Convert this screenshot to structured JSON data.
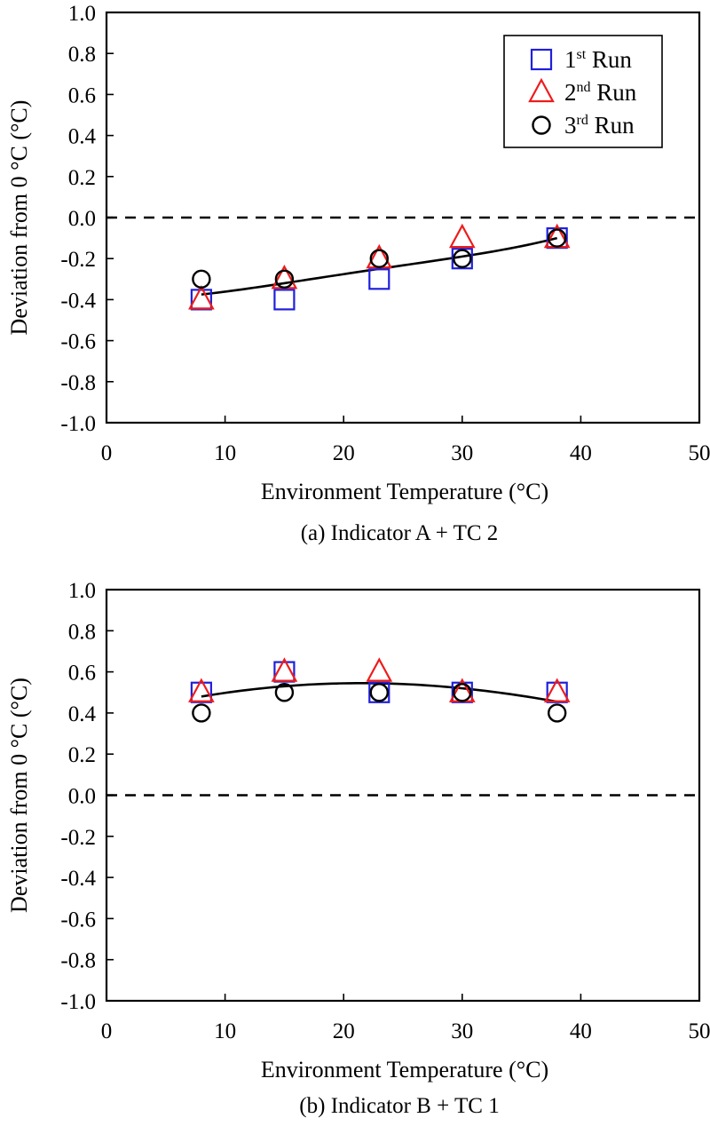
{
  "chart_data": [
    {
      "type": "scatter",
      "caption": "(a) Indicator A + TC 2",
      "xlabel": "Environment Temperature (°C)",
      "ylabel": "Deviation from 0 °C (°C)",
      "xlim": [
        0,
        50
      ],
      "ylim": [
        -1.0,
        1.0
      ],
      "xticks": [
        "0",
        "10",
        "20",
        "30",
        "40",
        "50"
      ],
      "yticks": [
        "1.0",
        "0.8",
        "0.6",
        "0.4",
        "0.2",
        "0.0",
        "-0.2",
        "-0.4",
        "-0.6",
        "-0.8",
        "-1.0"
      ],
      "reference_line_y": 0.0,
      "x": [
        8,
        15,
        23,
        30,
        38
      ],
      "series": [
        {
          "name": "1st Run",
          "marker": "square",
          "color": "#1f1fdb",
          "values": [
            -0.4,
            -0.4,
            -0.3,
            -0.2,
            -0.1
          ]
        },
        {
          "name": "2nd Run",
          "marker": "triangle",
          "color": "#ee1c1c",
          "values": [
            -0.4,
            -0.3,
            -0.2,
            -0.1,
            -0.1
          ]
        },
        {
          "name": "3rd Run",
          "marker": "circle",
          "color": "#000000",
          "values": [
            -0.3,
            -0.3,
            -0.2,
            -0.2,
            -0.1
          ]
        }
      ],
      "trendline": {
        "x_range": [
          8,
          38
        ],
        "points": [
          [
            8,
            -0.375
          ],
          [
            15,
            -0.32
          ],
          [
            23,
            -0.25
          ],
          [
            30,
            -0.19
          ],
          [
            38,
            -0.1
          ]
        ]
      },
      "legend": {
        "position": "top-right",
        "items": [
          {
            "base": "1",
            "sup": "st",
            "rest": " Run"
          },
          {
            "base": "2",
            "sup": "nd",
            "rest": " Run"
          },
          {
            "base": "3",
            "sup": "rd",
            "rest": " Run"
          }
        ]
      }
    },
    {
      "type": "scatter",
      "caption": "(b) Indicator B + TC 1",
      "xlabel": "Environment Temperature (°C)",
      "ylabel": "Deviation from 0 °C (°C)",
      "xlim": [
        0,
        50
      ],
      "ylim": [
        -1.0,
        1.0
      ],
      "xticks": [
        "0",
        "10",
        "20",
        "30",
        "40",
        "50"
      ],
      "yticks": [
        "1.0",
        "0.8",
        "0.6",
        "0.4",
        "0.2",
        "0.0",
        "-0.2",
        "-0.4",
        "-0.6",
        "-0.8",
        "-1.0"
      ],
      "reference_line_y": 0.0,
      "x": [
        8,
        15,
        23,
        30,
        38
      ],
      "series": [
        {
          "name": "1st Run",
          "marker": "square",
          "color": "#1f1fdb",
          "values": [
            0.5,
            0.6,
            0.5,
            0.5,
            0.5
          ]
        },
        {
          "name": "2nd Run",
          "marker": "triangle",
          "color": "#ee1c1c",
          "values": [
            0.5,
            0.6,
            0.6,
            0.5,
            0.5
          ]
        },
        {
          "name": "3rd Run",
          "marker": "circle",
          "color": "#000000",
          "values": [
            0.4,
            0.5,
            0.5,
            0.5,
            0.4
          ]
        }
      ],
      "trendline": {
        "x_range": [
          8,
          38
        ],
        "points": [
          [
            8,
            0.48
          ],
          [
            15,
            0.53
          ],
          [
            22,
            0.545
          ],
          [
            30,
            0.52
          ],
          [
            38,
            0.455
          ]
        ]
      }
    }
  ]
}
